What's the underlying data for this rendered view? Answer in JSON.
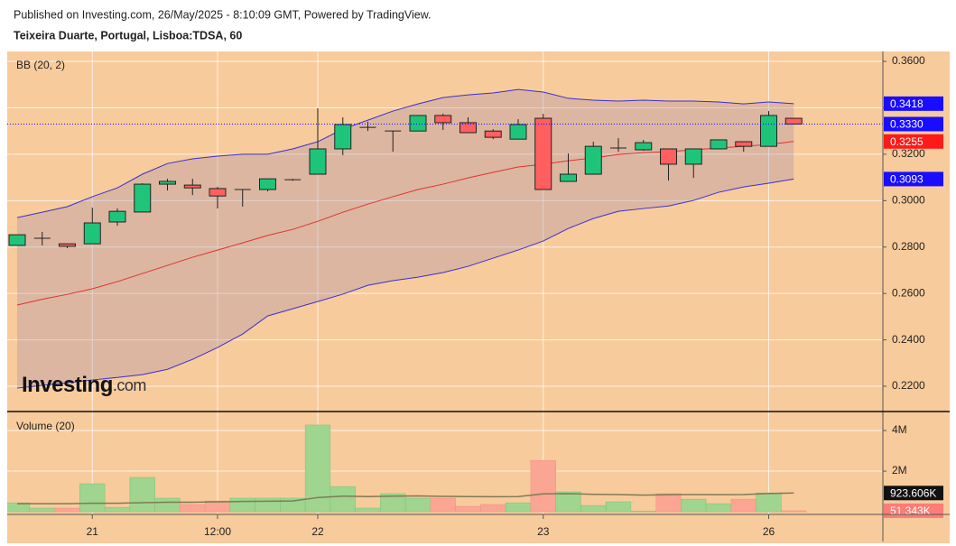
{
  "header": {
    "line1": "Published on Investing.com, 26/May/2025 - 8:10:09 GMT, Powered by TradingView.",
    "line2": "Teixeira Duarte, Portugal, Lisboa:TDSA, 60"
  },
  "logo": [
    "Investing",
    ".com"
  ],
  "chart_data": [
    {
      "type": "candlestick",
      "title": "BB (20, 2)",
      "categories": [
        null,
        null,
        null,
        "21",
        null,
        null,
        null,
        null,
        "12:00",
        null,
        null,
        null,
        "22",
        null,
        null,
        null,
        null,
        null,
        null,
        null,
        null,
        "23",
        null,
        null,
        null,
        null,
        null,
        null,
        null,
        null,
        "26",
        null
      ],
      "open": [
        0.2807,
        0.2838,
        0.2814,
        0.2814,
        0.2908,
        0.2951,
        0.3071,
        0.3067,
        0.3052,
        0.3048,
        0.3048,
        0.309,
        0.3114,
        0.3223,
        0.3316,
        0.33,
        0.33,
        0.3367,
        0.3336,
        0.33,
        0.3265,
        0.3355,
        0.3083,
        0.3114,
        0.3227,
        0.3219,
        0.3223,
        0.3157,
        0.3223,
        0.3254,
        0.3234,
        0.3355
      ],
      "high": [
        0.2853,
        0.2865,
        0.2814,
        0.297,
        0.2966,
        0.3075,
        0.3094,
        0.3094,
        0.3059,
        0.3048,
        0.3094,
        0.3094,
        0.3398,
        0.3359,
        0.334,
        0.33,
        0.3367,
        0.3375,
        0.3359,
        0.3308,
        0.3351,
        0.3374,
        0.3203,
        0.3254,
        0.3269,
        0.3262,
        0.3223,
        0.3223,
        0.3262,
        0.3254,
        0.3386,
        0.3355
      ],
      "low": [
        0.2807,
        0.2807,
        0.2795,
        0.2814,
        0.2892,
        0.2951,
        0.3044,
        0.3024,
        0.2966,
        0.2974,
        0.304,
        0.3086,
        0.3114,
        0.3196,
        0.33,
        0.3211,
        0.33,
        0.3305,
        0.3293,
        0.3265,
        0.3265,
        0.3048,
        0.3083,
        0.3114,
        0.3211,
        0.3215,
        0.3087,
        0.3098,
        0.3223,
        0.3211,
        0.3234,
        0.333
      ],
      "close": [
        0.2853,
        0.2838,
        0.2803,
        0.2904,
        0.2954,
        0.3071,
        0.3083,
        0.3055,
        0.302,
        0.3048,
        0.3094,
        0.309,
        0.3223,
        0.3328,
        0.3316,
        0.33,
        0.3367,
        0.3336,
        0.3293,
        0.3273,
        0.3328,
        0.3048,
        0.3114,
        0.3234,
        0.3227,
        0.325,
        0.3157,
        0.3223,
        0.3262,
        0.3234,
        0.3367,
        0.333
      ],
      "up_color": "#1fc47b",
      "down_color": "#ff5f5f",
      "band_fill": "#9a88a8",
      "series": [
        {
          "color": "#3a2fd0",
          "values": [
            0.2927,
            0.295,
            0.2974,
            0.3017,
            0.3055,
            0.3114,
            0.316,
            0.318,
            0.3192,
            0.32,
            0.32,
            0.3223,
            0.3254,
            0.3308,
            0.3347,
            0.3386,
            0.3417,
            0.3444,
            0.3456,
            0.3464,
            0.3479,
            0.3468,
            0.3441,
            0.3433,
            0.3429,
            0.3433,
            0.3429,
            0.3429,
            0.3425,
            0.3417,
            0.3425,
            0.3418
          ]
        },
        {
          "color": "#e0322f",
          "values": [
            0.255,
            0.2575,
            0.2596,
            0.262,
            0.2651,
            0.2686,
            0.2721,
            0.2756,
            0.2787,
            0.2818,
            0.285,
            0.2876,
            0.2911,
            0.295,
            0.2985,
            0.3017,
            0.3048,
            0.3071,
            0.3098,
            0.3122,
            0.3145,
            0.3157,
            0.3172,
            0.3184,
            0.3199,
            0.3207,
            0.3211,
            0.3219,
            0.3227,
            0.3234,
            0.3242,
            0.3255
          ]
        },
        {
          "color": "#3a2fd0",
          "values": [
            0.2192,
            0.2204,
            0.2215,
            0.2227,
            0.2238,
            0.225,
            0.2273,
            0.2316,
            0.2367,
            0.2425,
            0.2503,
            0.2534,
            0.2565,
            0.2597,
            0.2635,
            0.2655,
            0.267,
            0.269,
            0.2717,
            0.2752,
            0.2787,
            0.2826,
            0.288,
            0.2923,
            0.2954,
            0.2966,
            0.2977,
            0.3001,
            0.3036,
            0.3059,
            0.3075,
            0.3093
          ]
        }
      ],
      "ylim": [
        0.2095,
        0.3643
      ],
      "yticks": [
        {
          "value": 0.36,
          "label": "0.3600"
        },
        {
          "value": 0.34,
          "label": "0.3400"
        },
        {
          "value": 0.32,
          "label": "0.3200"
        },
        {
          "value": 0.3,
          "label": "0.3000"
        },
        {
          "value": 0.28,
          "label": "0.2800"
        },
        {
          "value": 0.26,
          "label": "0.2600"
        },
        {
          "value": 0.24,
          "label": "0.2400"
        },
        {
          "value": 0.22,
          "label": "0.2200"
        }
      ],
      "grid": true,
      "markers": [
        {
          "value": 0.3418,
          "label": "0.3418",
          "color": "#1a0dff"
        },
        {
          "value": 0.333,
          "label": "0.3330",
          "color": "#1a0dff",
          "dashed": true
        },
        {
          "value": 0.3255,
          "label": "0.3255",
          "color": "#ff1a1a"
        },
        {
          "value": 0.3093,
          "label": "0.3093",
          "color": "#1a0dff"
        }
      ]
    },
    {
      "type": "bar",
      "title": "Volume (20)",
      "values": [
        440000,
        180000,
        180000,
        1380000,
        220000,
        1690000,
        670000,
        360000,
        530000,
        670000,
        670000,
        670000,
        4270000,
        1240000,
        180000,
        890000,
        670000,
        670000,
        270000,
        360000,
        440000,
        2530000,
        980000,
        310000,
        490000,
        30000,
        890000,
        620000,
        400000,
        620000,
        930000,
        51343
      ],
      "up_color": "#9fd58f",
      "down_color": "#fba594",
      "series": [
        {
          "color": "#807a55",
          "values": [
            400000,
            400000,
            400000,
            420000,
            420000,
            450000,
            470000,
            470000,
            490000,
            510000,
            520000,
            530000,
            700000,
            770000,
            750000,
            770000,
            780000,
            760000,
            750000,
            740000,
            750000,
            880000,
            890000,
            860000,
            850000,
            820000,
            840000,
            850000,
            840000,
            850000,
            900000,
            923606
          ]
        }
      ],
      "ylim": [
        -130000,
        4890000
      ],
      "yticks": [
        {
          "value": 4000000,
          "label": "4M"
        },
        {
          "value": 2000000,
          "label": "2M"
        }
      ],
      "markers": [
        {
          "value": 923606,
          "label": "923.606K",
          "color": "#111111"
        },
        {
          "value": 51343,
          "label": "51.343K",
          "color": "#fb7d76"
        }
      ]
    }
  ]
}
